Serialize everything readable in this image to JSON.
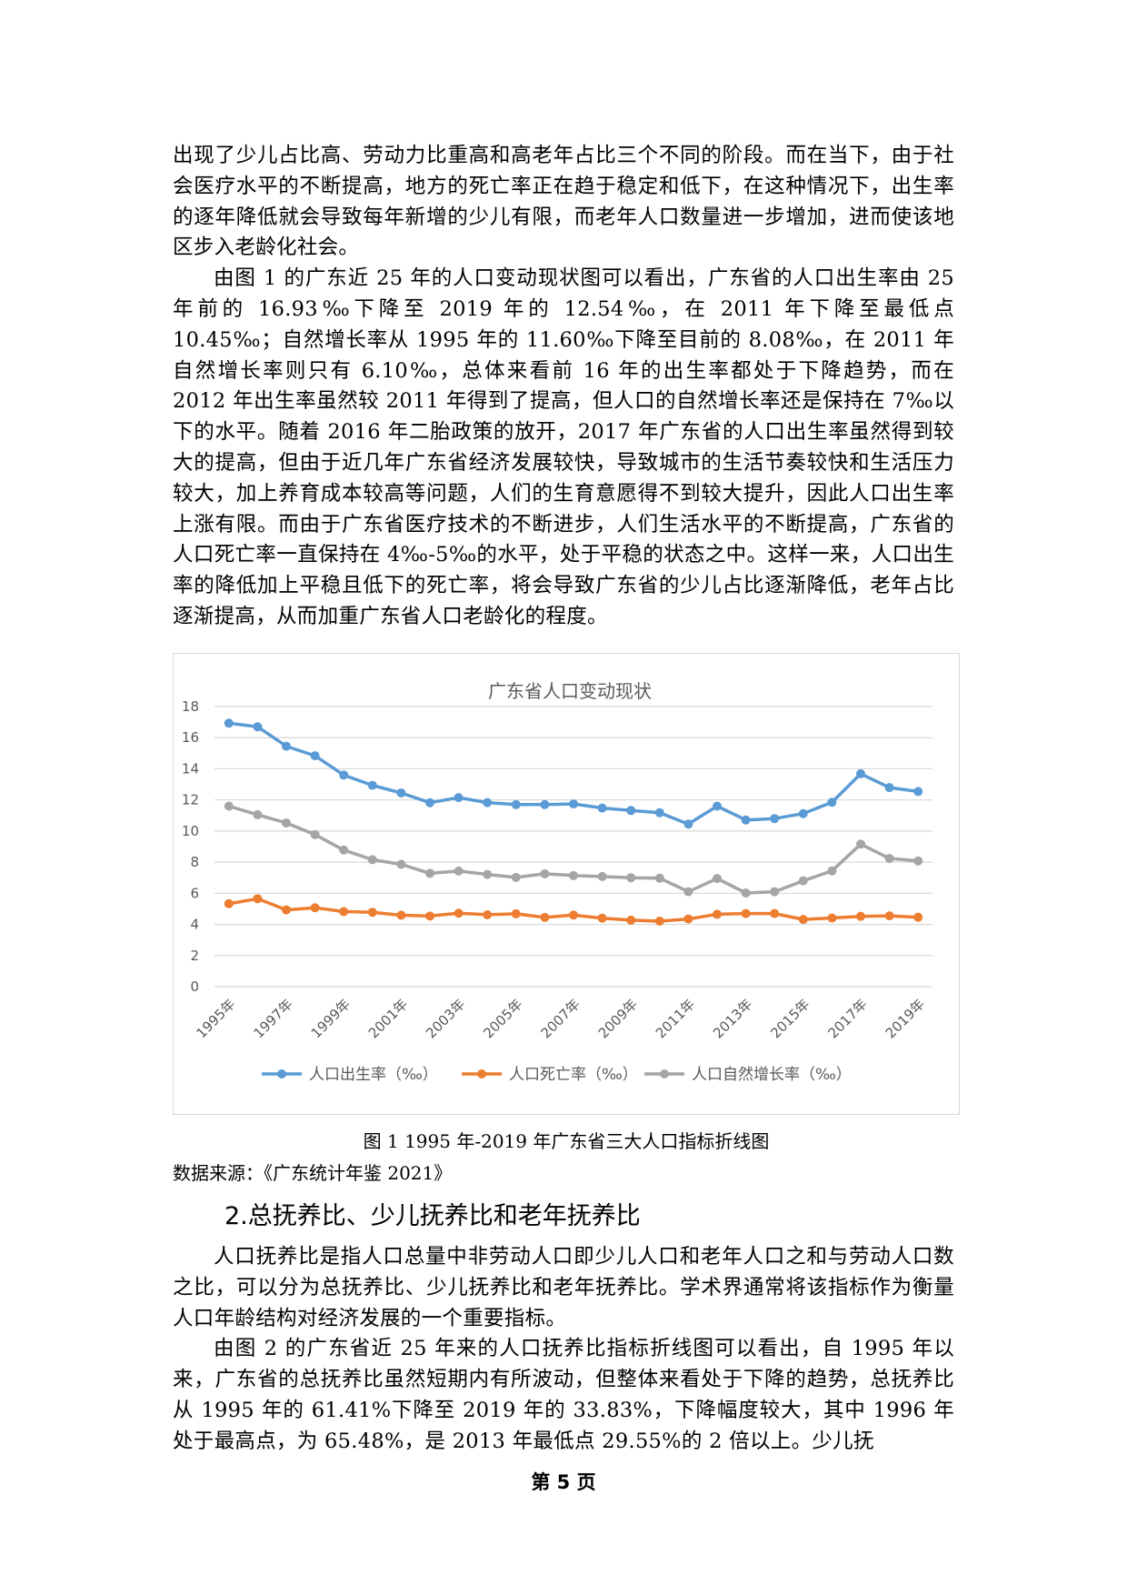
{
  "document": {
    "paragraphs_top": [
      "出现了少儿占比高、劳动力比重高和高老年占比三个不同的阶段。而在当下，由于社会医疗水平的不断提高，地方的死亡率正在趋于稳定和低下，在这种情况下，出生率的逐年降低就会导致每年新增的少儿有限，而老年人口数量进一步增加，进而使该地区步入老龄化社会。",
      "由图 1 的广东近 25 年的人口变动现状图可以看出，广东省的人口出生率由 25 年前的 16.93‰下降至 2019 年的 12.54‰，在 2011 年下降至最低点 10.45‰；自然增长率从 1995 年的 11.60‰下降至目前的 8.08‰，在 2011 年自然增长率则只有 6.10‰，总体来看前 16 年的出生率都处于下降趋势，而在 2012 年出生率虽然较 2011 年得到了提高，但人口的自然增长率还是保持在 7‰以下的水平。随着 2016 年二胎政策的放开，2017 年广东省的人口出生率虽然得到较大的提高，但由于近几年广东省经济发展较快，导致城市的生活节奏较快和生活压力较大，加上养育成本较高等问题，人们的生育意愿得不到较大提升，因此人口出生率上涨有限。而由于广东省医疗技术的不断进步，人们生活水平的不断提高，广东省的人口死亡率一直保持在 4‰-5‰的水平，处于平稳的状态之中。这样一来，人口出生率的降低加上平稳且低下的死亡率，将会导致广东省的少儿占比逐渐降低，老年占比逐渐提高，从而加重广东省人口老龄化的程度。"
    ],
    "figure_caption": "图 1  1995 年-2019 年广东省三大人口指标折线图",
    "figure_source": "数据来源：《广东统计年鉴 2021》",
    "section_heading": "2.总抚养比、少儿抚养比和老年抚养比",
    "paragraphs_bottom": [
      "人口抚养比是指人口总量中非劳动人口即少儿人口和老年人口之和与劳动人口数之比，可以分为总抚养比、少儿抚养比和老年抚养比。学术界通常将该指标作为衡量人口年龄结构对经济发展的一个重要指标。",
      "由图 2 的广东省近 25 年来的人口抚养比指标折线图可以看出，自 1995 年以来，广东省的总抚养比虽然短期内有所波动，但整体来看处于下降的趋势，总抚养比从 1995 年的 61.41%下降至 2019 年的 33.83%，下降幅度较大，其中 1996 年处于最高点，为 65.48%，是 2013 年最低点 29.55%的 2 倍以上。少儿抚"
    ],
    "page_number": "第 5 页"
  },
  "chart_data": {
    "type": "line",
    "title": "广东省人口变动现状",
    "xlabel": "",
    "ylabel": "",
    "ylim": [
      0,
      18
    ],
    "yticks": [
      0,
      2,
      4,
      6,
      8,
      10,
      12,
      14,
      16,
      18
    ],
    "grid": true,
    "legend_position": "bottom",
    "categories": [
      "1995年",
      "1996年",
      "1997年",
      "1998年",
      "1999年",
      "2000年",
      "2001年",
      "2002年",
      "2003年",
      "2004年",
      "2005年",
      "2006年",
      "2007年",
      "2008年",
      "2009年",
      "2010年",
      "2011年",
      "2012年",
      "2013年",
      "2014年",
      "2015年",
      "2016年",
      "2017年",
      "2018年",
      "2019年"
    ],
    "tick_labels": [
      "1995年",
      "1997年",
      "1999年",
      "2001年",
      "2003年",
      "2005年",
      "2007年",
      "2009年",
      "2011年",
      "2013年",
      "2015年",
      "2017年",
      "2019年"
    ],
    "series": [
      {
        "name": "人口出生率（‰）",
        "color": "#5b9bd5",
        "values": [
          16.93,
          16.7,
          15.45,
          14.84,
          13.6,
          12.94,
          12.45,
          11.82,
          12.15,
          11.83,
          11.7,
          11.7,
          11.74,
          11.48,
          11.32,
          11.18,
          10.45,
          11.6,
          10.71,
          10.8,
          11.12,
          11.85,
          13.68,
          12.79,
          12.54
        ]
      },
      {
        "name": "人口死亡率（‰）",
        "color": "#ed7d31",
        "values": [
          5.33,
          5.65,
          4.93,
          5.07,
          4.82,
          4.78,
          4.59,
          4.54,
          4.72,
          4.62,
          4.68,
          4.45,
          4.6,
          4.4,
          4.27,
          4.21,
          4.35,
          4.65,
          4.7,
          4.7,
          4.32,
          4.41,
          4.52,
          4.55,
          4.46
        ]
      },
      {
        "name": "人口自然增长率（‰）",
        "color": "#a5a5a5",
        "values": [
          11.6,
          11.05,
          10.52,
          9.77,
          8.78,
          8.16,
          7.86,
          7.28,
          7.43,
          7.21,
          7.02,
          7.25,
          7.14,
          7.08,
          7.0,
          6.97,
          6.1,
          6.95,
          6.02,
          6.1,
          6.8,
          7.44,
          9.16,
          8.24,
          8.08
        ]
      }
    ]
  }
}
